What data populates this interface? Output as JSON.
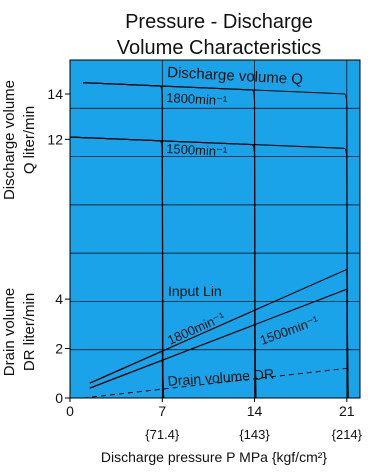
{
  "chart_data": {
    "type": "line",
    "title_lines": [
      "Pressure - Discharge",
      "Volume Characteristics"
    ],
    "plot_background": "#1aa3e8",
    "line_color": "#000000",
    "xlabel": "Discharge pressure P MPa {kgf/cm²}",
    "x_ticks": [
      {
        "value": 0,
        "label": "0",
        "sub": ""
      },
      {
        "value": 7,
        "label": "7",
        "sub": "{71.4}"
      },
      {
        "value": 14,
        "label": "14",
        "sub": "{143}"
      },
      {
        "value": 21,
        "label": "21",
        "sub": "{214}"
      }
    ],
    "xlim": [
      0,
      22
    ],
    "upper": {
      "ylabel_lines": [
        "Discharge volume",
        "Q liter/min"
      ],
      "ylim": [
        8,
        15.5
      ],
      "y_ticks": [
        {
          "value": 12,
          "label": "12"
        },
        {
          "value": 14,
          "label": "14"
        }
      ]
    },
    "lower": {
      "ylabel_lines": [
        "Drain volume",
        "DR liter/min"
      ],
      "ylim": [
        0,
        5.5
      ],
      "y_ticks": [
        {
          "value": 0,
          "label": "0"
        },
        {
          "value": 2,
          "label": "2"
        },
        {
          "value": 4,
          "label": "4"
        }
      ]
    },
    "discharge_series": [
      {
        "name": "1800min⁻¹",
        "flat": [
          [
            1,
            14.5
          ],
          [
            21,
            14.0
          ]
        ],
        "cutoffs": [
          7,
          14,
          21
        ],
        "drop_to": 8
      },
      {
        "name": "1500min⁻¹",
        "flat": [
          [
            0,
            12.1
          ],
          [
            21,
            11.6
          ]
        ],
        "cutoffs": [
          7,
          14,
          21
        ],
        "drop_to": 8
      }
    ],
    "input_series": [
      {
        "name": "1800min⁻¹",
        "points": [
          [
            1.5,
            0.6
          ],
          [
            21,
            5.2
          ]
        ],
        "cutoffs": [
          7,
          14,
          21
        ],
        "drop_to": 0
      },
      {
        "name": "1500min⁻¹",
        "points": [
          [
            1.5,
            0.4
          ],
          [
            21,
            4.4
          ]
        ],
        "cutoffs": [
          7,
          14,
          21
        ],
        "drop_to": 0
      }
    ],
    "drain_series": {
      "name": "Drain volume DR",
      "points": [
        [
          1,
          0
        ],
        [
          21,
          1.2
        ]
      ]
    },
    "annotations": {
      "discharge": "Discharge volume Q",
      "rpm_1800_top": "1800min⁻¹",
      "rpm_1500_top": "1500min⁻¹",
      "input": "Input Lin",
      "rpm_1800_input": "1800min⁻¹",
      "rpm_1500_input": "1500min⁻¹",
      "drain": "Drain volume DR"
    }
  }
}
